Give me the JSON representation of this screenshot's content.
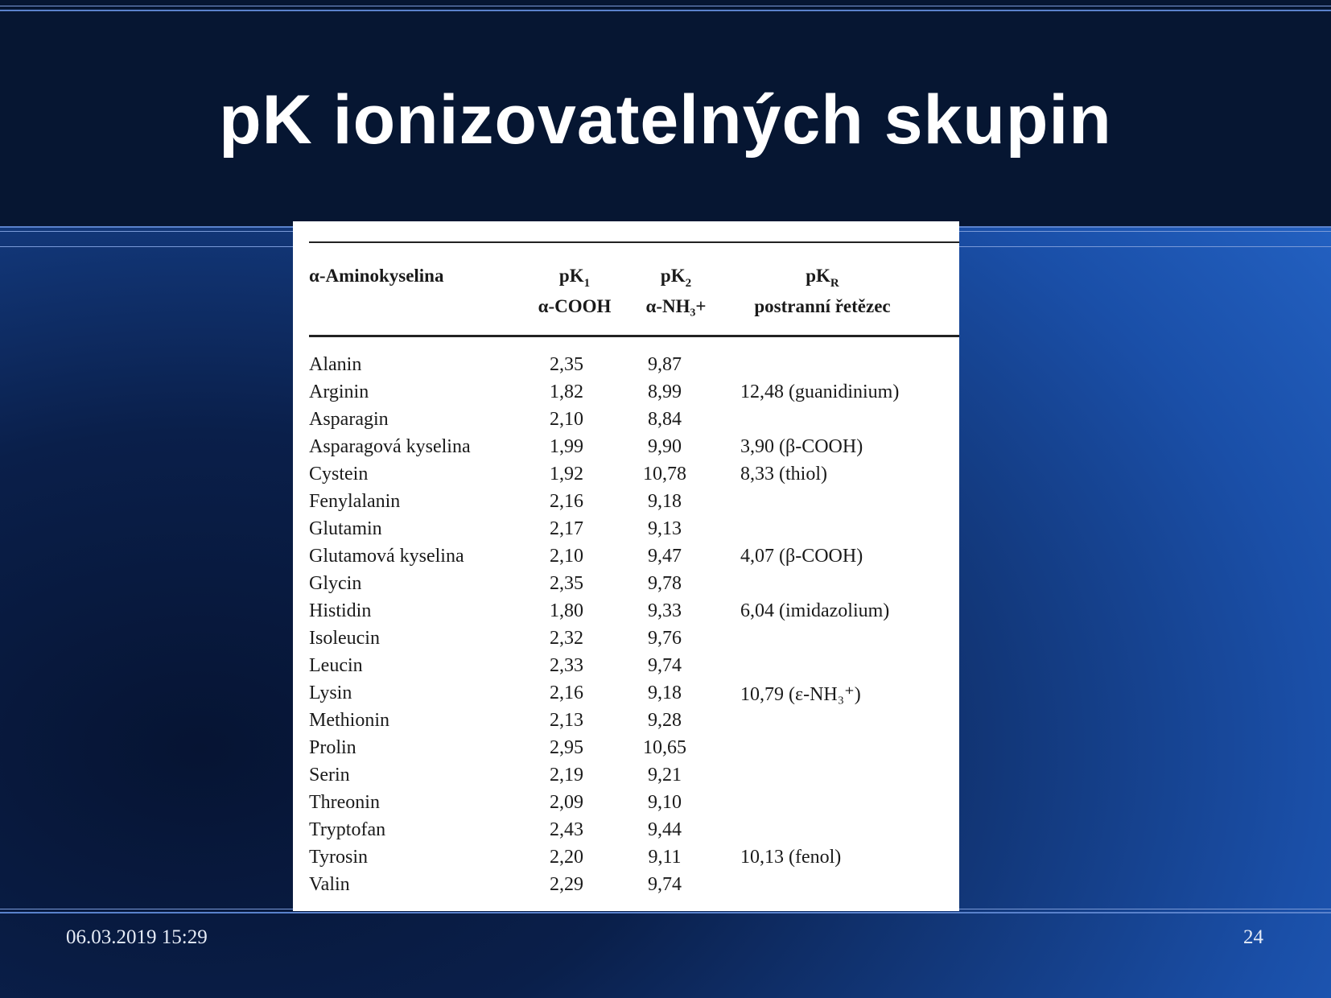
{
  "slide": {
    "title": "pK ionizovatelných skupin",
    "date": "06.03.2019 15:29",
    "page_number": "24"
  },
  "table": {
    "headers": {
      "name": "α-Aminokyselina",
      "k1_symbol": "pK",
      "k1_sub": "1",
      "k1_label": "α-COOH",
      "k2_symbol": "pK",
      "k2_sub": "2",
      "k2_label": "α-NH₃+",
      "kr_symbol": "pK",
      "kr_sub": "R",
      "kr_label": "postranní řetězec"
    },
    "rows": [
      {
        "name": "Alanin",
        "k1": "2,35",
        "k2": "9,87",
        "kr": ""
      },
      {
        "name": "Arginin",
        "k1": "1,82",
        "k2": "8,99",
        "kr": "12,48 (guanidinium)"
      },
      {
        "name": "Asparagin",
        "k1": "2,10",
        "k2": "8,84",
        "kr": ""
      },
      {
        "name": "Asparagová kyselina",
        "k1": "1,99",
        "k2": "9,90",
        "kr": "3,90 (β-COOH)"
      },
      {
        "name": "Cystein",
        "k1": "1,92",
        "k2": "10,78",
        "kr": "8,33 (thiol)"
      },
      {
        "name": "Fenylalanin",
        "k1": "2,16",
        "k2": "9,18",
        "kr": ""
      },
      {
        "name": "Glutamin",
        "k1": "2,17",
        "k2": "9,13",
        "kr": ""
      },
      {
        "name": "Glutamová kyselina",
        "k1": "2,10",
        "k2": "9,47",
        "kr": "4,07 (β-COOH)"
      },
      {
        "name": "Glycin",
        "k1": "2,35",
        "k2": "9,78",
        "kr": ""
      },
      {
        "name": "Histidin",
        "k1": "1,80",
        "k2": "9,33",
        "kr": "6,04 (imidazolium)"
      },
      {
        "name": "Isoleucin",
        "k1": "2,32",
        "k2": "9,76",
        "kr": ""
      },
      {
        "name": "Leucin",
        "k1": "2,33",
        "k2": "9,74",
        "kr": ""
      },
      {
        "name": "Lysin",
        "k1": "2,16",
        "k2": "9,18",
        "kr": "10,79 (ε-NH₃⁺)"
      },
      {
        "name": "Methionin",
        "k1": "2,13",
        "k2": "9,28",
        "kr": ""
      },
      {
        "name": "Prolin",
        "k1": "2,95",
        "k2": "10,65",
        "kr": ""
      },
      {
        "name": "Serin",
        "k1": "2,19",
        "k2": "9,21",
        "kr": ""
      },
      {
        "name": "Threonin",
        "k1": "2,09",
        "k2": "9,10",
        "kr": ""
      },
      {
        "name": "Tryptofan",
        "k1": "2,43",
        "k2": "9,44",
        "kr": ""
      },
      {
        "name": "Tyrosin",
        "k1": "2,20",
        "k2": "9,11",
        "kr": "10,13 (fenol)"
      },
      {
        "name": "Valin",
        "k1": "2,29",
        "k2": "9,74",
        "kr": ""
      }
    ]
  }
}
